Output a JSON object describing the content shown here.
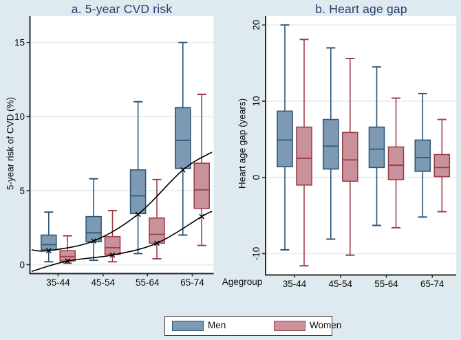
{
  "figure": {
    "xlabel": "Agegroup",
    "box_format": "[whisker_low, q1, median, q3, whisker_high]"
  },
  "legend": {
    "items": [
      {
        "label": "Men",
        "key": "men"
      },
      {
        "label": "Women",
        "key": "women"
      }
    ]
  },
  "colors": {
    "page_bg": "#dfeaf0",
    "plot_bg": "#ffffff",
    "grid": "#e6f1f6",
    "axis": "#2a2a2a",
    "text": "#0a0a0a",
    "title": "#26406e",
    "men_fill": "#7e9ab3",
    "men_stroke": "#2b5778",
    "women_fill": "#c9929b",
    "women_stroke": "#9e3f4b",
    "mean_line": "#000000"
  },
  "chart_data": [
    {
      "type": "box",
      "panel": "a",
      "title": "a. 5-year CVD risk",
      "ylabel": "5-year risk of CVD (%)",
      "xlabel": "Agegroup",
      "categories": [
        "35-44",
        "45-54",
        "55-64",
        "65-74"
      ],
      "yticks": [
        0,
        5,
        10,
        15
      ],
      "ylim": [
        -0.6,
        16.8
      ],
      "grid": true,
      "legend_position": "bottom",
      "series": [
        {
          "name": "Men",
          "boxes": [
            [
              0.2,
              1.0,
              1.35,
              2.0,
              3.55
            ],
            [
              0.3,
              1.55,
              2.15,
              3.25,
              5.8
            ],
            [
              0.75,
              3.45,
              4.65,
              6.4,
              11.0
            ],
            [
              2.0,
              6.5,
              8.4,
              10.6,
              15.0
            ]
          ]
        },
        {
          "name": "Women",
          "boxes": [
            [
              0.1,
              0.25,
              0.55,
              0.95,
              1.95
            ],
            [
              0.2,
              0.7,
              1.15,
              1.9,
              3.65
            ],
            [
              0.4,
              1.45,
              2.05,
              3.15,
              5.75
            ],
            [
              1.3,
              3.8,
              5.05,
              6.85,
              11.5
            ]
          ]
        }
      ],
      "mean_curves": [
        {
          "series": "Men",
          "marker": "x",
          "values": [
            0.95,
            1.6,
            3.4,
            6.4
          ],
          "end_values": [
            1.0,
            7.6
          ]
        },
        {
          "series": "Women",
          "marker": "x",
          "values": [
            0.25,
            0.65,
            1.45,
            3.25
          ],
          "end_values": [
            -0.45,
            3.6
          ]
        }
      ]
    },
    {
      "type": "box",
      "panel": "b",
      "title": "b. Heart age gap",
      "ylabel": "Heart age gap (years)",
      "xlabel": "Agegroup",
      "categories": [
        "35-44",
        "45-54",
        "55-64",
        "65-74"
      ],
      "yticks": [
        -10,
        0,
        10,
        20
      ],
      "ylim": [
        -12.8,
        21.2
      ],
      "grid": true,
      "series": [
        {
          "name": "Men",
          "boxes": [
            [
              -9.5,
              1.4,
              4.9,
              8.7,
              20.0
            ],
            [
              -8.1,
              1.1,
              4.1,
              7.6,
              17.0
            ],
            [
              -6.3,
              1.3,
              3.7,
              6.6,
              14.5
            ],
            [
              -5.2,
              0.8,
              2.6,
              4.9,
              11.0
            ]
          ]
        },
        {
          "name": "Women",
          "boxes": [
            [
              -11.6,
              -1.0,
              2.5,
              6.6,
              18.1
            ],
            [
              -10.2,
              -0.5,
              2.3,
              5.9,
              15.6
            ],
            [
              -6.6,
              -0.3,
              1.6,
              4.0,
              10.4
            ],
            [
              -4.5,
              0.1,
              1.3,
              3.0,
              7.6
            ]
          ]
        }
      ]
    }
  ]
}
